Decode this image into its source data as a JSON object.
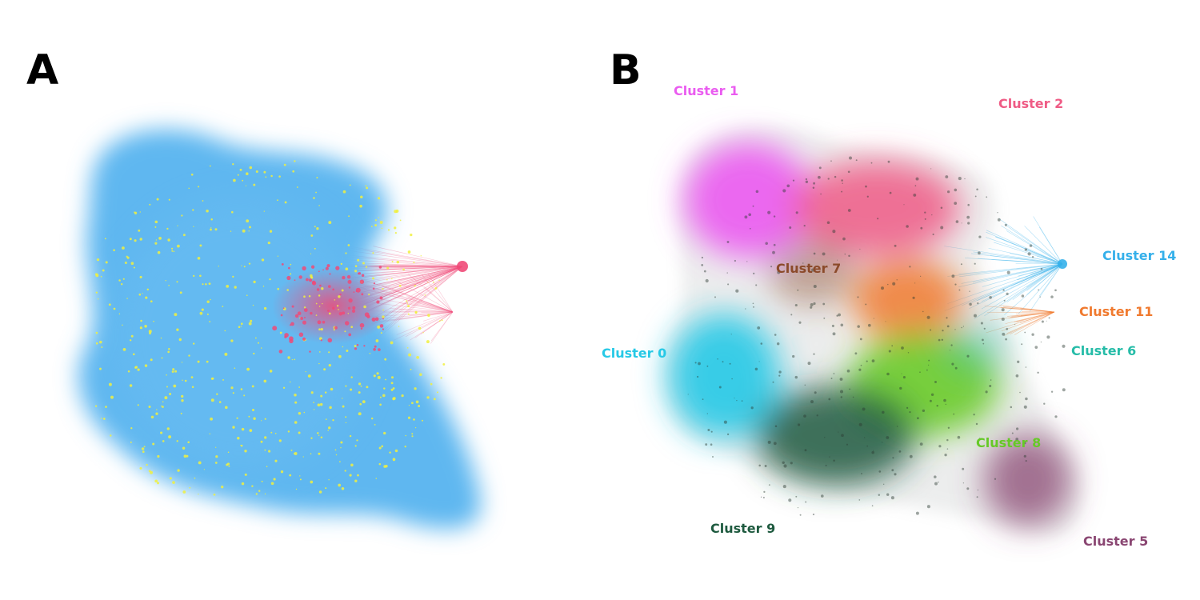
{
  "panels": [
    {
      "letter": "A"
    },
    {
      "letter": "B"
    }
  ],
  "panel_a": {
    "colors": {
      "base": "#5fb7f0",
      "highlight": "#f0f040",
      "hub": "#ef4a78"
    }
  },
  "clusters": [
    {
      "name": "Cluster 1",
      "color": "#ea5cf0"
    },
    {
      "name": "Cluster 2",
      "color": "#ef5b85"
    },
    {
      "name": "Cluster 7",
      "color": "#8b4a2a"
    },
    {
      "name": "Cluster 14",
      "color": "#35b0ea"
    },
    {
      "name": "Cluster 11",
      "color": "#f07a2f"
    },
    {
      "name": "Cluster 0",
      "color": "#27c9e6"
    },
    {
      "name": "Cluster 6",
      "color": "#26bca8"
    },
    {
      "name": "Cluster 8",
      "color": "#66c927"
    },
    {
      "name": "Cluster 9",
      "color": "#1e5a3f"
    },
    {
      "name": "Cluster 5",
      "color": "#8a4672"
    }
  ]
}
